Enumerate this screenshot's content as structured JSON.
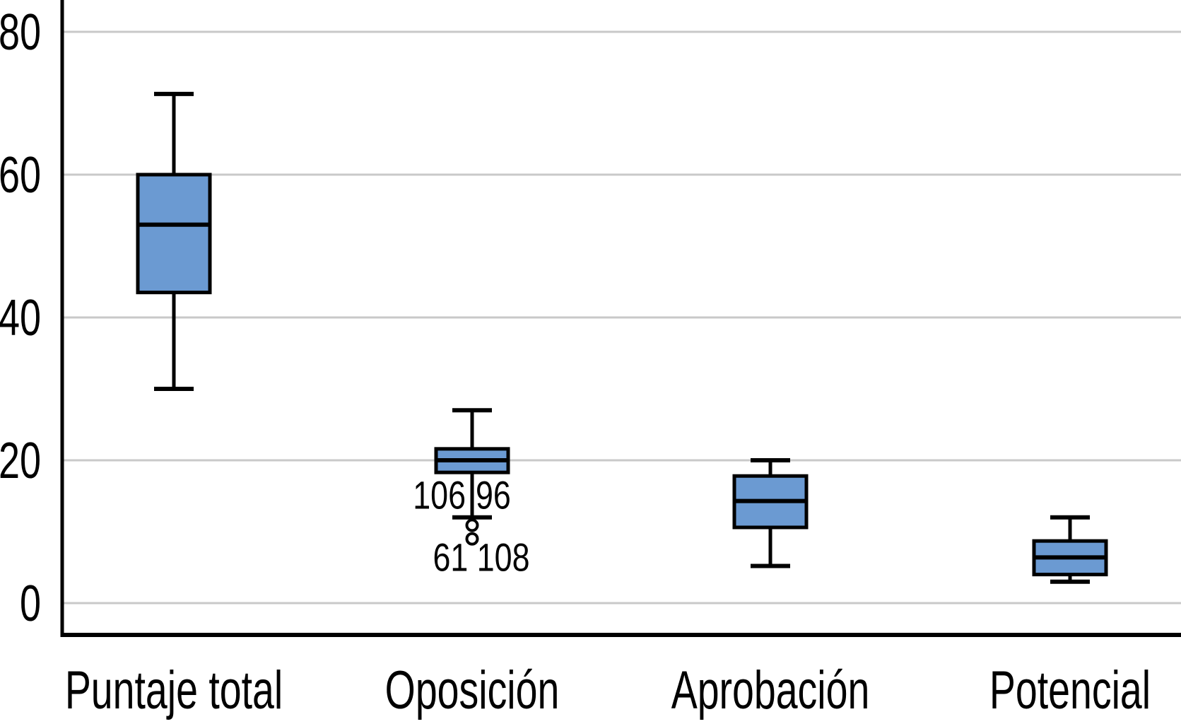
{
  "chart_data": {
    "type": "box",
    "title": "",
    "xlabel": "",
    "ylabel": "",
    "categories": [
      "Puntaje total",
      "Oposición",
      "Aprobación",
      "Potencial"
    ],
    "y_axis": {
      "ticks": [
        0,
        20,
        40,
        60,
        80
      ],
      "ylim": [
        -4.5,
        84.5
      ],
      "grid": true
    },
    "series": [
      {
        "category": "Puntaje total",
        "whisker_low": 30,
        "q1": 43.5,
        "median": 53,
        "q3": 60,
        "whisker_high": 71.3,
        "outliers": [],
        "outlier_labels": []
      },
      {
        "category": "Oposición",
        "whisker_low": 12,
        "q1": 18.3,
        "median": 20,
        "q3": 21.6,
        "whisker_high": 27,
        "outliers": [
          10.9,
          9
        ],
        "outlier_labels": [
          {
            "text": "106",
            "anchor": "end",
            "x_offset": -9,
            "at_value": 13.2
          },
          {
            "text": "96",
            "anchor": "start",
            "x_offset": 5,
            "at_value": 13.2
          },
          {
            "text": "61 108",
            "anchor": "middle",
            "x_offset": 13,
            "at_value": 4.5
          }
        ]
      },
      {
        "category": "Aprobación",
        "whisker_low": 5.2,
        "q1": 10.6,
        "median": 14.3,
        "q3": 17.8,
        "whisker_high": 20,
        "outliers": [],
        "outlier_labels": []
      },
      {
        "category": "Potencial",
        "whisker_low": 3,
        "q1": 4,
        "median": 6.4,
        "q3": 8.7,
        "whisker_high": 12,
        "outliers": [],
        "outlier_labels": []
      }
    ],
    "legend": {
      "visible": false
    },
    "colors": {
      "box_fill": "#6B9AD2",
      "box_stroke": "#000000",
      "median": "#000000",
      "whisker": "#000000",
      "outlier_stroke": "#000000",
      "outlier_fill": "#FFFFFF",
      "gridline": "#C9C9C9",
      "axis": "#000000",
      "text": "#000000",
      "background": "#FFFFFF"
    }
  }
}
